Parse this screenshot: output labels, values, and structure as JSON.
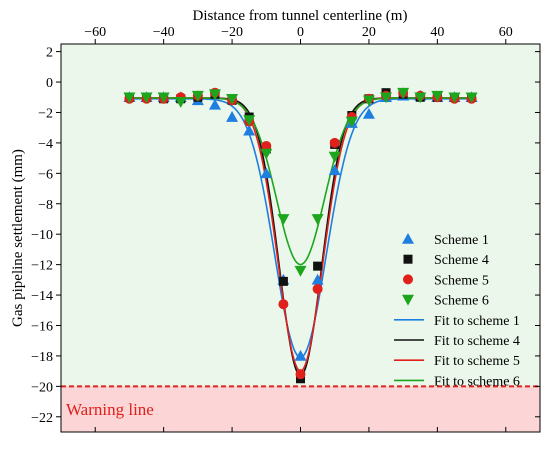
{
  "chart_data": {
    "type": "scatter",
    "xlabel": "Distance from tunnel centerline (m)",
    "ylabel": "Gas pipeline settlement (mm)",
    "xlim": [
      -70,
      70
    ],
    "ylim": [
      -23,
      2.5
    ],
    "x_ticks": [
      -60,
      -40,
      -20,
      0,
      20,
      40,
      60
    ],
    "x_tick_labels": [
      "−60",
      "−40",
      "−20",
      "0",
      "20",
      "40",
      "60"
    ],
    "y_ticks": [
      2,
      0,
      -2,
      -4,
      -6,
      -8,
      -10,
      -12,
      -14,
      -16,
      -18,
      -20,
      -22
    ],
    "y_tick_labels": [
      "2",
      "0",
      "−2",
      "−4",
      "−6",
      "−8",
      "−10",
      "−12",
      "−14",
      "−16",
      "−18",
      "−20",
      "−22"
    ],
    "x_axis_position": "top",
    "grid": false,
    "legend_position": "bottom-right",
    "warning": {
      "value": -20,
      "label": "Warning line",
      "color": "#e0201b",
      "fill": "#fcd6d6"
    },
    "safe_fill": "#eaf7ea",
    "series": [
      {
        "name": "Scheme 1",
        "marker": "triangle-up",
        "color": "#1f7fe0",
        "x": [
          -50,
          -45,
          -40,
          -35,
          -30,
          -25,
          -20,
          -15,
          -10,
          -5,
          0,
          5,
          10,
          15,
          20,
          25,
          30,
          35,
          40,
          45,
          50
        ],
        "y": [
          -1.0,
          -1.0,
          -1.0,
          -1.0,
          -1.2,
          -1.5,
          -2.3,
          -3.2,
          -6.0,
          -13.0,
          -18.0,
          -13.0,
          -5.8,
          -2.7,
          -2.1,
          -1.0,
          -0.9,
          -0.9,
          -1.0,
          -1.0,
          -1.0
        ]
      },
      {
        "name": "Scheme 4",
        "marker": "square",
        "color": "#111111",
        "x": [
          -50,
          -45,
          -40,
          -35,
          -30,
          -25,
          -20,
          -15,
          -10,
          -5,
          0,
          5,
          10,
          15,
          20,
          25,
          30,
          35,
          40,
          45,
          50
        ],
        "y": [
          -1.0,
          -1.0,
          -1.1,
          -1.1,
          -1.0,
          -0.8,
          -1.2,
          -2.3,
          -4.4,
          -13.1,
          -19.5,
          -12.1,
          -4.1,
          -2.2,
          -1.1,
          -0.7,
          -0.8,
          -1.0,
          -1.0,
          -1.0,
          -1.0
        ]
      },
      {
        "name": "Scheme 5",
        "marker": "circle",
        "color": "#e0201b",
        "x": [
          -50,
          -45,
          -40,
          -35,
          -30,
          -25,
          -20,
          -15,
          -10,
          -5,
          0,
          5,
          10,
          15,
          20,
          25,
          30,
          35,
          40,
          45,
          50
        ],
        "y": [
          -1.1,
          -1.1,
          -1.1,
          -1.0,
          -0.9,
          -0.7,
          -1.2,
          -2.6,
          -4.2,
          -14.6,
          -19.2,
          -13.6,
          -4.0,
          -2.3,
          -1.1,
          -0.9,
          -0.7,
          -0.9,
          -1.0,
          -1.1,
          -1.1
        ]
      },
      {
        "name": "Scheme 6",
        "marker": "triangle-down",
        "color": "#1ea51e",
        "x": [
          -50,
          -45,
          -40,
          -35,
          -30,
          -25,
          -20,
          -15,
          -10,
          -5,
          0,
          5,
          10,
          15,
          20,
          25,
          30,
          35,
          40,
          45,
          50
        ],
        "y": [
          -1.0,
          -1.0,
          -1.0,
          -1.3,
          -0.9,
          -0.8,
          -1.1,
          -2.5,
          -4.7,
          -9.0,
          -12.4,
          -9.0,
          -4.9,
          -2.6,
          -1.2,
          -1.0,
          -0.7,
          -1.0,
          -0.9,
          -1.0,
          -1.0
        ]
      }
    ],
    "fits": [
      {
        "name": "Fit to scheme 1",
        "color": "#1f7fe0",
        "base": -1.1,
        "amplitude": -17.0,
        "width": 7.5
      },
      {
        "name": "Fit to scheme 4",
        "color": "#111111",
        "base": -1.05,
        "amplitude": -18.25,
        "width": 6.2
      },
      {
        "name": "Fit to scheme 5",
        "color": "#e0201b",
        "base": -1.05,
        "amplitude": -17.95,
        "width": 6.5
      },
      {
        "name": "Fit to scheme 6",
        "color": "#1ea51e",
        "base": -1.05,
        "amplitude": -10.95,
        "width": 7.0
      }
    ]
  }
}
